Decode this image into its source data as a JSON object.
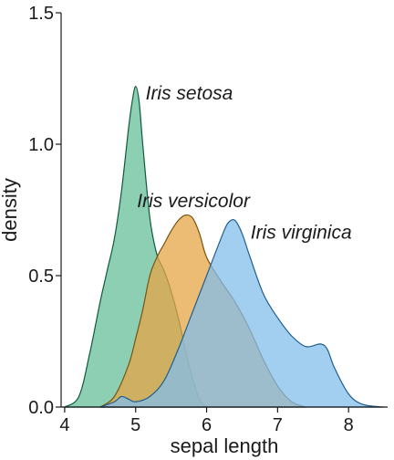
{
  "chart_data": {
    "type": "area",
    "xlabel": "sepal length",
    "ylabel": "density",
    "xlim": [
      3.95,
      8.55
    ],
    "ylim": [
      0,
      1.5
    ],
    "xticks": [
      4,
      5,
      6,
      7,
      8
    ],
    "yticks": [
      0.0,
      0.5,
      1.0,
      1.5
    ],
    "xtick_labels": [
      "4",
      "5",
      "6",
      "7",
      "8"
    ],
    "ytick_labels": [
      "0.0",
      "0.5",
      "1.0",
      "1.5"
    ],
    "series": [
      {
        "name": "Iris setosa",
        "fill": "#66BF99",
        "stroke": "#0E5A3C",
        "x": [
          4.0,
          4.2,
          4.35,
          4.5,
          4.6,
          4.7,
          4.8,
          4.9,
          4.95,
          5.0,
          5.05,
          5.1,
          5.2,
          5.3,
          5.4,
          5.5,
          5.6,
          5.7,
          5.8,
          5.9,
          6.0
        ],
        "y": [
          0.0,
          0.04,
          0.2,
          0.4,
          0.52,
          0.64,
          0.82,
          1.06,
          1.16,
          1.22,
          1.16,
          1.0,
          0.72,
          0.58,
          0.52,
          0.44,
          0.34,
          0.22,
          0.11,
          0.03,
          0.0
        ]
      },
      {
        "name": "Iris versicolor",
        "fill": "#E6A647",
        "stroke": "#7A5211",
        "x": [
          4.5,
          4.7,
          4.9,
          5.0,
          5.1,
          5.2,
          5.3,
          5.4,
          5.5,
          5.6,
          5.7,
          5.8,
          5.9,
          6.0,
          6.2,
          6.4,
          6.6,
          6.8,
          7.0,
          7.2,
          7.4
        ],
        "y": [
          0.0,
          0.04,
          0.16,
          0.26,
          0.37,
          0.5,
          0.57,
          0.62,
          0.67,
          0.71,
          0.73,
          0.72,
          0.66,
          0.57,
          0.48,
          0.4,
          0.3,
          0.18,
          0.08,
          0.02,
          0.0
        ]
      },
      {
        "name": "Iris virginica",
        "fill": "#83BDEB",
        "stroke": "#1E5F8E",
        "x": [
          4.5,
          4.7,
          4.8,
          4.9,
          5.0,
          5.2,
          5.4,
          5.6,
          5.8,
          6.0,
          6.2,
          6.3,
          6.4,
          6.5,
          6.6,
          6.8,
          7.0,
          7.2,
          7.4,
          7.6,
          7.7,
          7.8,
          8.0,
          8.2,
          8.5
        ],
        "y": [
          0.0,
          0.02,
          0.04,
          0.03,
          0.02,
          0.04,
          0.1,
          0.22,
          0.36,
          0.5,
          0.64,
          0.7,
          0.71,
          0.66,
          0.58,
          0.43,
          0.34,
          0.27,
          0.23,
          0.24,
          0.22,
          0.15,
          0.05,
          0.01,
          0.0
        ]
      }
    ],
    "annotations": [
      {
        "text": "Iris setosa",
        "x": 5.14,
        "y": 1.17
      },
      {
        "text": "Iris versicolor",
        "x": 5.02,
        "y": 0.76
      },
      {
        "text": "Iris virginica",
        "x": 6.62,
        "y": 0.64
      }
    ]
  }
}
